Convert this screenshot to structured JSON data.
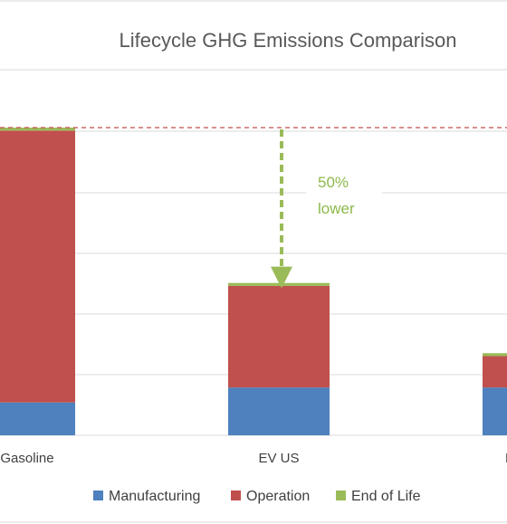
{
  "chart_data": {
    "type": "bar",
    "stacked": true,
    "title": "Lifecycle GHG Emissions Comparison",
    "categories": [
      "Gasoline",
      "EV US",
      "EV"
    ],
    "series": [
      {
        "name": "Manufacturing",
        "color": "#4e81bd",
        "values": [
          1.1,
          1.6,
          1.6
        ]
      },
      {
        "name": "Operation",
        "color": "#c0504d",
        "values": [
          9.1,
          3.4,
          1.05
        ]
      },
      {
        "name": "End of Life",
        "color": "#9bbb59",
        "values": [
          0.1,
          0.1,
          0.1
        ]
      }
    ],
    "ylim": [
      0,
      10.3
    ],
    "grid": true,
    "legend": "bottom",
    "reference_line": {
      "value": 10.3,
      "color": "#c0504d",
      "style": "dashed"
    },
    "annotation": {
      "line1": "50%",
      "line2": "lower",
      "color": "#8db94a"
    }
  }
}
